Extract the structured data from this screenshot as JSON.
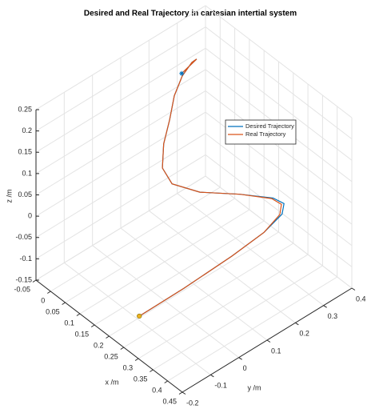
{
  "chart_data": {
    "type": "line3d",
    "title": "Desired and Real Trajectory in cartesian intertial system",
    "xlabel": "x /m",
    "ylabel": "y /m",
    "zlabel": "z /m",
    "xlim": [
      -0.05,
      0.45
    ],
    "ylim": [
      -0.2,
      0.4
    ],
    "zlim": [
      -0.15,
      0.25
    ],
    "xticks": [
      -0.05,
      0,
      0.05,
      0.1,
      0.15,
      0.2,
      0.25,
      0.3,
      0.35,
      0.4,
      0.45
    ],
    "yticks": [
      -0.2,
      -0.1,
      0,
      0.1,
      0.2,
      0.3,
      0.4
    ],
    "zticks": [
      -0.15,
      -0.1,
      -0.05,
      0,
      0.05,
      0.1,
      0.15,
      0.2,
      0.25
    ],
    "grid": true,
    "legend": "upper right",
    "series": [
      {
        "name": "Desired Trajectory",
        "color": "#0072bd",
        "x": [
          0.249,
          0.266,
          0.278,
          0.286,
          0.287,
          0.282,
          0.271,
          0.23,
          0.182,
          0.138,
          0.102,
          0.063,
          0.031,
          -0.003,
          -0.022,
          -0.022,
          -0.005,
          0.027
        ],
        "y": [
          -0.144,
          -0.004,
          0.153,
          0.259,
          0.322,
          0.334,
          0.307,
          0.232,
          0.14,
          0.087,
          0.09,
          0.135,
          0.189,
          0.241,
          0.289,
          0.323,
          0.322,
          0.236
        ],
        "z": [
          -0.1,
          -0.083,
          -0.065,
          -0.048,
          -0.03,
          -0.013,
          0.005,
          0.023,
          0.04,
          0.058,
          0.075,
          0.093,
          0.11,
          0.128,
          0.145,
          0.163,
          0.18,
          0.198
        ]
      },
      {
        "name": "Real Trajectory",
        "color": "#d95319",
        "x": [
          0.249,
          0.266,
          0.278,
          0.286,
          0.285,
          0.28,
          0.27,
          0.23,
          0.182,
          0.138,
          0.102,
          0.063,
          0.031,
          -0.003,
          -0.022,
          -0.022,
          -0.005,
          0.027
        ],
        "y": [
          -0.144,
          -0.004,
          0.153,
          0.259,
          0.316,
          0.327,
          0.303,
          0.232,
          0.14,
          0.087,
          0.09,
          0.135,
          0.189,
          0.241,
          0.289,
          0.323,
          0.322,
          0.236
        ],
        "z": [
          -0.1,
          -0.083,
          -0.065,
          -0.048,
          -0.03,
          -0.013,
          0.005,
          0.023,
          0.04,
          0.058,
          0.075,
          0.093,
          0.11,
          0.128,
          0.145,
          0.163,
          0.18,
          0.198
        ]
      }
    ]
  }
}
